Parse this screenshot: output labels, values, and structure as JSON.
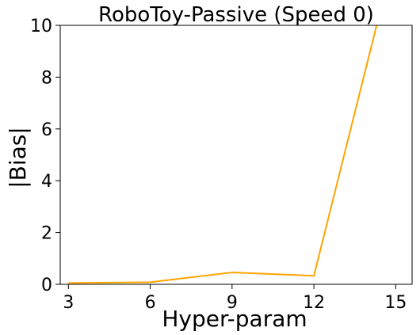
{
  "chart_data": {
    "type": "line",
    "title": "RoboToy-Passive (Speed 0)",
    "xlabel": "Hyper-param",
    "ylabel": "|Bias|",
    "xlim": [
      2.7,
      15.6
    ],
    "ylim": [
      0,
      10
    ],
    "x_ticks": [
      3,
      6,
      9,
      12,
      15
    ],
    "y_ticks": [
      0,
      2,
      4,
      6,
      8,
      10
    ],
    "grid": false,
    "legend": "none",
    "series": [
      {
        "color": "#FFA500",
        "x": [
          3,
          6,
          9,
          12,
          14.3
        ],
        "y": [
          0.05,
          0.08,
          0.46,
          0.33,
          10.0
        ]
      }
    ]
  }
}
